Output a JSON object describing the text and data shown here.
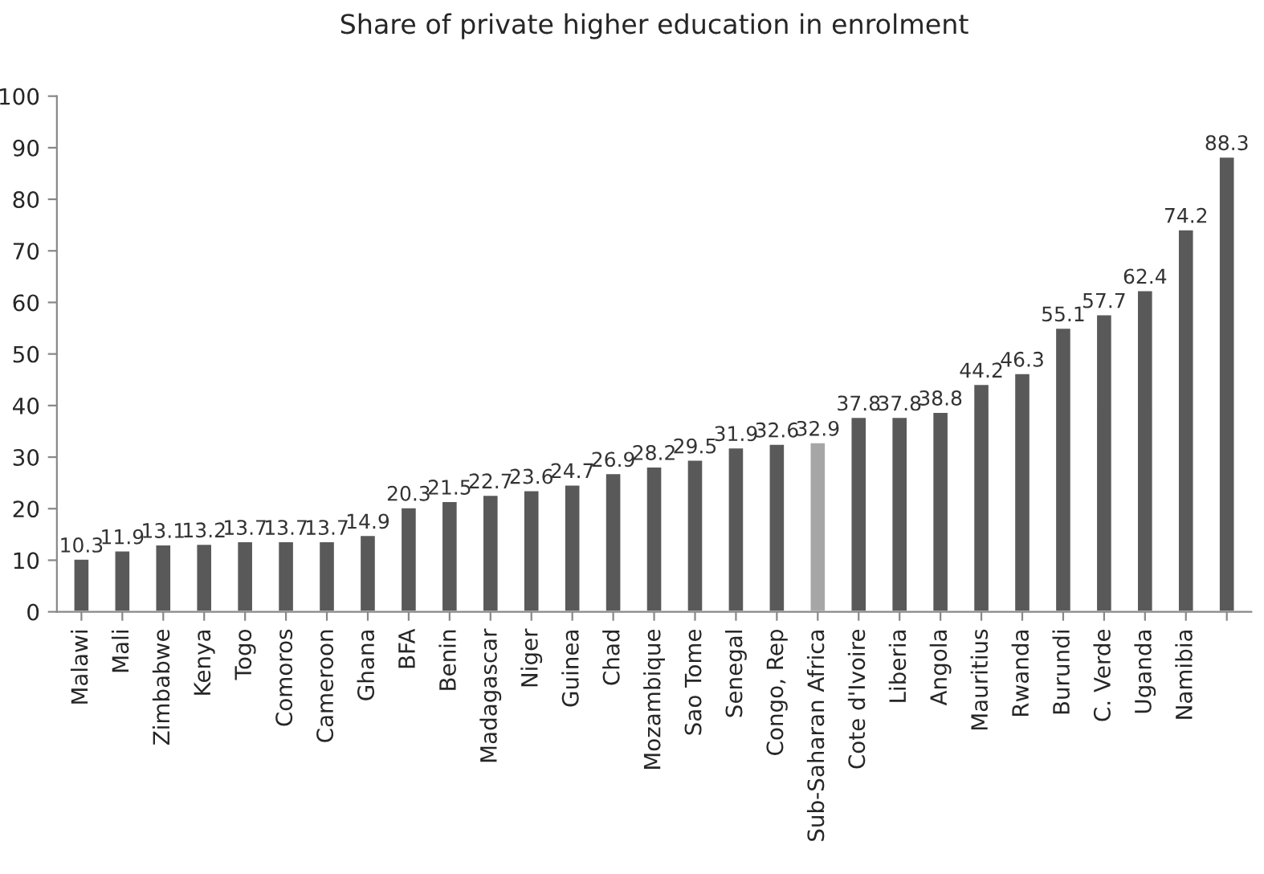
{
  "chart_data": {
    "type": "bar",
    "title": "Share of private higher education in enrolment",
    "categories": [
      "Malawi",
      "Mali",
      "Zimbabwe",
      "Kenya",
      "Togo",
      "Comoros",
      "Cameroon",
      "Ghana",
      "BFA",
      "Benin",
      "Madagascar",
      "Niger",
      "Guinea",
      "Chad",
      "Mozambique",
      "Sao Tome",
      "Senegal",
      "Congo, Rep",
      "Sub-Saharan Africa",
      "Cote d'Ivoire",
      "Liberia",
      "Angola",
      "Mauritius",
      "Rwanda",
      "Burundi",
      "C. Verde",
      "Uganda",
      "Namibia",
      null
    ],
    "values": [
      10.3,
      11.9,
      13.1,
      13.2,
      13.7,
      13.7,
      13.7,
      14.9,
      20.3,
      21.5,
      22.7,
      23.6,
      24.7,
      26.9,
      28.2,
      29.5,
      31.9,
      32.6,
      32.9,
      37.8,
      37.8,
      38.8,
      44.2,
      46.3,
      55.1,
      57.7,
      62.4,
      74.2,
      88.3
    ],
    "colors": [
      "#595959",
      "#595959",
      "#595959",
      "#595959",
      "#595959",
      "#595959",
      "#595959",
      "#595959",
      "#595959",
      "#595959",
      "#595959",
      "#595959",
      "#595959",
      "#595959",
      "#595959",
      "#595959",
      "#595959",
      "#595959",
      "#a6a6a6",
      "#595959",
      "#595959",
      "#595959",
      "#595959",
      "#595959",
      "#595959",
      "#595959",
      "#595959",
      "#595959",
      "#595959"
    ],
    "ylim": [
      0,
      100
    ],
    "yticks": [
      0,
      10,
      20,
      30,
      40,
      50,
      60,
      70,
      80,
      90,
      100
    ],
    "data_labels": true,
    "grid": false,
    "legend": false
  }
}
